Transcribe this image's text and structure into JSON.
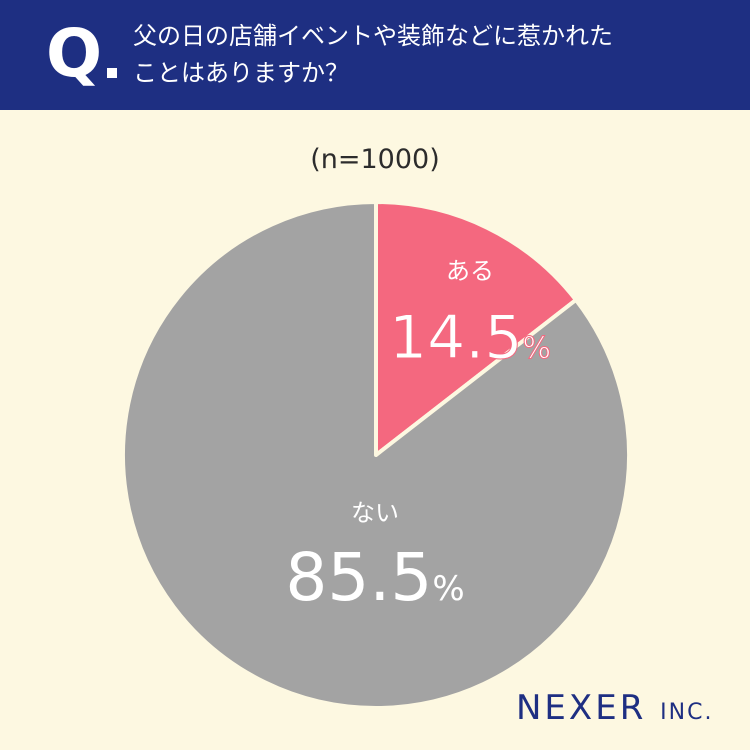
{
  "header": {
    "q_label": "Q",
    "question_lines": [
      "父の日の店舗イベントや装飾などに惹かれた",
      "ことはありますか？"
    ]
  },
  "sample_size": "(n=1000)",
  "chart_data": {
    "type": "pie",
    "title": "父の日の店舗イベントや装飾などに惹かれたことはありますか？",
    "slices": [
      {
        "label": "ある",
        "value": 14.5,
        "color": "#f4687f"
      },
      {
        "label": "ない",
        "value": 85.5,
        "color": "#a3a3a3"
      }
    ],
    "unit": "%"
  },
  "brand": {
    "name": "NEXER",
    "suffix": "INC."
  }
}
